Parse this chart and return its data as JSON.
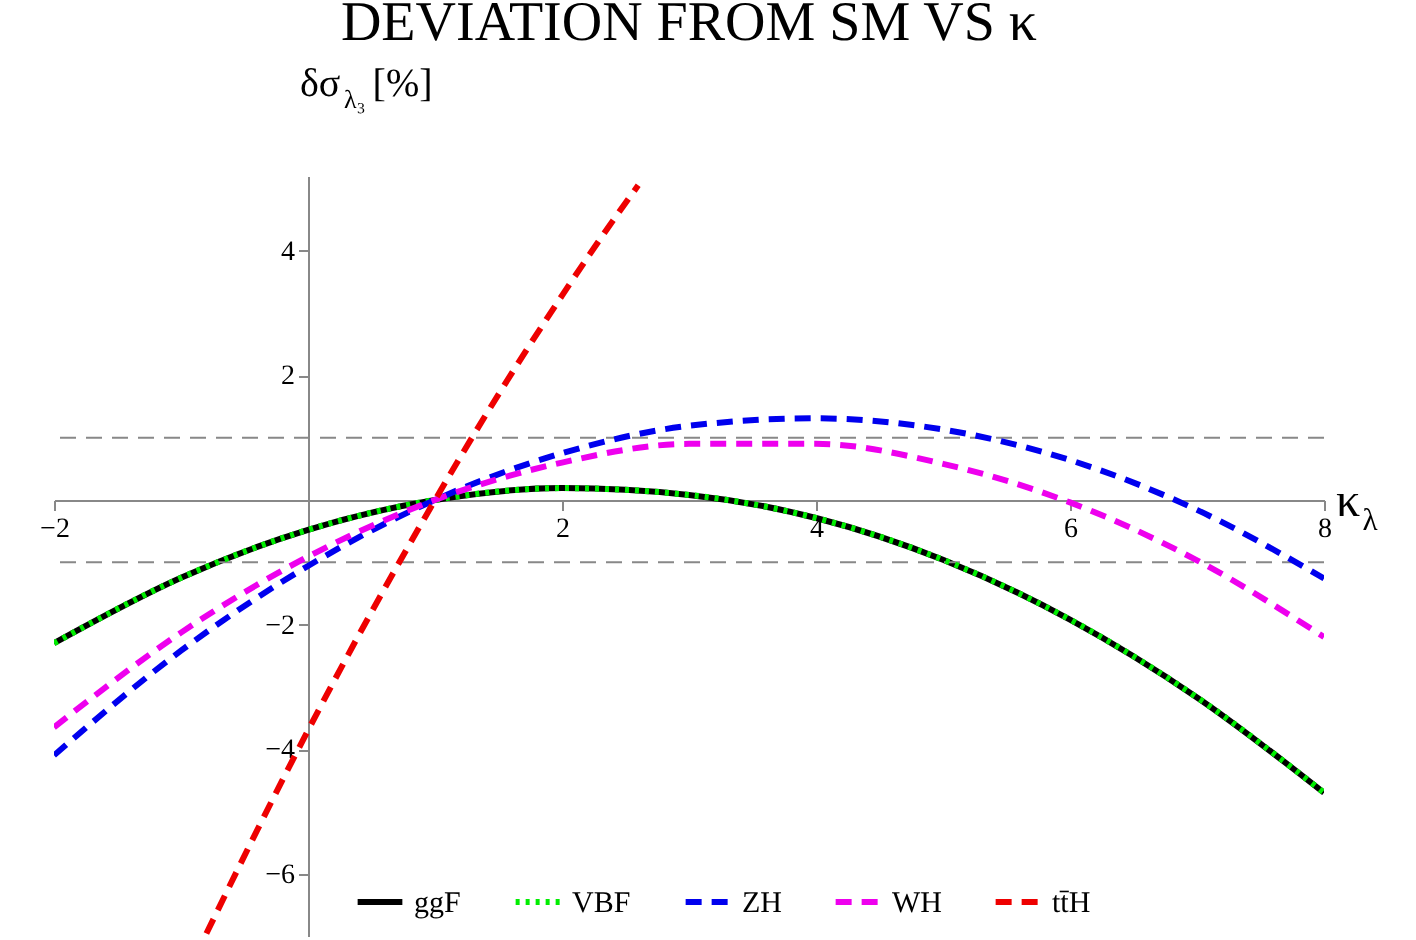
{
  "chart_data": {
    "type": "line",
    "title": "DEVIATION FROM SM VS κ",
    "xlabel": "κ$_{λ}$",
    "ylabel": "δσ$_{λ₃}$[%]",
    "xlim": [
      -2,
      8
    ],
    "ylim": [
      -7,
      5.2
    ],
    "xticks": [
      {
        "value": -2,
        "label": "−2"
      },
      2,
      4,
      6,
      8
    ],
    "yticks": [
      -6,
      -4,
      -2,
      2,
      4
    ],
    "grid": false,
    "legend": "bottom",
    "x": [
      -2,
      -1,
      0,
      1,
      2,
      3,
      4,
      5,
      6,
      7,
      8
    ],
    "series": [
      {
        "name": "ggF",
        "color": "#000000",
        "line_style": "solid",
        "values": [
          -2.3,
          -1.25,
          -0.48,
          0,
          0.19,
          0.08,
          -0.29,
          -0.96,
          -1.92,
          -3.17,
          -4.7
        ]
      },
      {
        "name": "VBF",
        "color": "#00ee00",
        "line_style": "dotted",
        "values": [
          -2.3,
          -1.25,
          -0.48,
          0,
          0.19,
          0.08,
          -0.29,
          -0.96,
          -1.92,
          -3.17,
          -4.7
        ]
      },
      {
        "name": "ZH",
        "color": "#0000ee",
        "line_style": "dashed",
        "values": [
          -4.1,
          -2.42,
          -1.06,
          0,
          0.75,
          1.19,
          1.31,
          1.13,
          0.64,
          -0.16,
          -1.26
        ]
      },
      {
        "name": "WH",
        "color": "#ee00ee",
        "line_style": "dashed",
        "values": [
          -3.65,
          -2.13,
          -0.91,
          0,
          0.6,
          0.9,
          0.9,
          0.58,
          -0.04,
          -0.97,
          -2.2
        ]
      },
      {
        "name": "tt̄H",
        "color": "#ee0000",
        "line_style": "dashed",
        "x": [
          -0.8,
          -0.4,
          0,
          0.4,
          0.8,
          1.2,
          1.6,
          2,
          2.4,
          2.6
        ],
        "values": [
          -6.96,
          -5.3,
          -3.7,
          -2.17,
          -0.71,
          0.69,
          2.02,
          3.28,
          4.48,
          5.05
        ]
      }
    ],
    "ref_lines": [
      {
        "axis": "y",
        "value": 1,
        "color": "#888888",
        "line_style": "dashed"
      },
      {
        "axis": "y",
        "value": -1,
        "color": "#888888",
        "line_style": "dashed"
      }
    ]
  }
}
